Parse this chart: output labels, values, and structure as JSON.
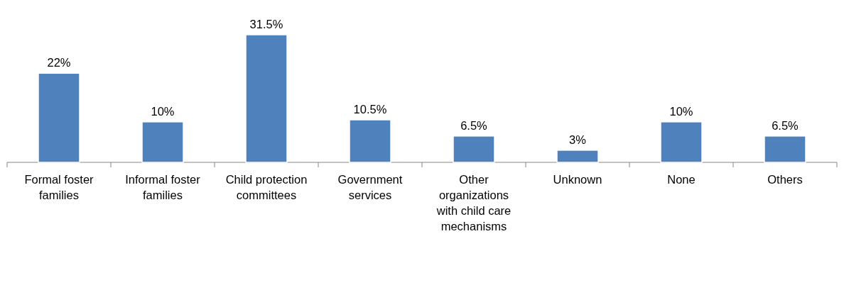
{
  "chart_data": {
    "type": "bar",
    "categories": [
      "Formal foster families",
      "Informal foster families",
      "Child protection committees",
      "Government services",
      "Other organizations with child care mechanisms",
      "Unknown",
      "None",
      "Others"
    ],
    "values": [
      22,
      10,
      31.5,
      10.5,
      6.5,
      3,
      10,
      6.5
    ],
    "value_labels": [
      "22%",
      "10%",
      "31.5%",
      "10.5%",
      "6.5%",
      "3%",
      "10%",
      "6.5%"
    ],
    "color": "#4f81bd"
  }
}
